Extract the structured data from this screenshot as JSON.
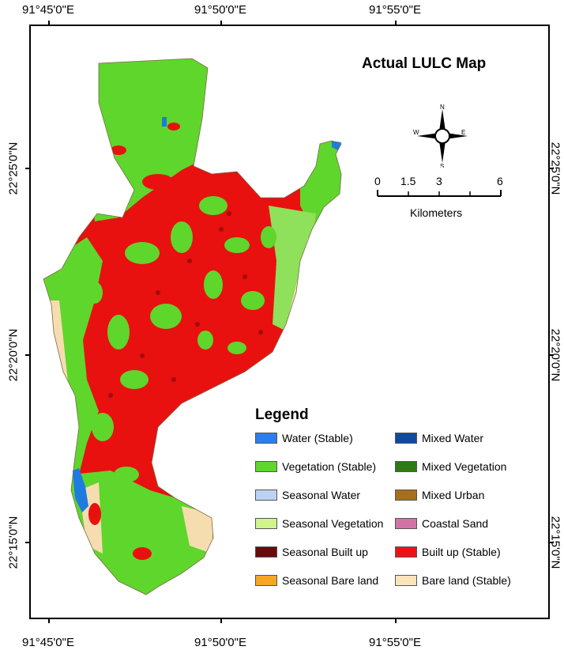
{
  "map": {
    "title": "Actual LULC Map",
    "top_longitudes": [
      "91°45'0\"E",
      "91°50'0\"E",
      "91°55'0\"E"
    ],
    "bottom_longitudes": [
      "91°45'0\"E",
      "91°50'0\"E",
      "91°55'0\"E"
    ],
    "left_latitudes": [
      "22°25'0\"N",
      "22°20'0\"N",
      "22°15'0\"N"
    ],
    "right_latitudes": [
      "22°25'0\"N",
      "22°20'0\"N",
      "22°15'0\"N"
    ],
    "compass": {
      "n": "N",
      "s": "S",
      "e": "E",
      "w": "W"
    },
    "scale": {
      "ticks": [
        "0",
        "1.5",
        "3",
        "6"
      ],
      "unit": "Kilometers"
    },
    "colors": {
      "vegetation": "#5fd62b",
      "built_up": "#e8110f",
      "seasonal_built": "#6b0a0a",
      "bare": "#f6ddb0",
      "water": "#1e7be0"
    }
  },
  "legend": {
    "title": "Legend",
    "items": [
      {
        "label": "Water (Stable)",
        "color": "#2a7ff0"
      },
      {
        "label": "Mixed Water",
        "color": "#0f4aa0"
      },
      {
        "label": "Vegetation (Stable)",
        "color": "#5fd62b"
      },
      {
        "label": "Mixed Vegetation",
        "color": "#2e7a12"
      },
      {
        "label": "Seasonal Water",
        "color": "#bcd2f5"
      },
      {
        "label": "Mixed Urban",
        "color": "#a86f1a"
      },
      {
        "label": "Seasonal Vegetation",
        "color": "#d0f58a"
      },
      {
        "label": "Coastal Sand",
        "color": "#d273a6"
      },
      {
        "label": "Seasonal Built up",
        "color": "#6b0a0a"
      },
      {
        "label": "Built up (Stable)",
        "color": "#ee1313"
      },
      {
        "label": "Seasonal Bare land",
        "color": "#f5a623"
      },
      {
        "label": "Bare land (Stable)",
        "color": "#fbe3bb"
      }
    ]
  }
}
